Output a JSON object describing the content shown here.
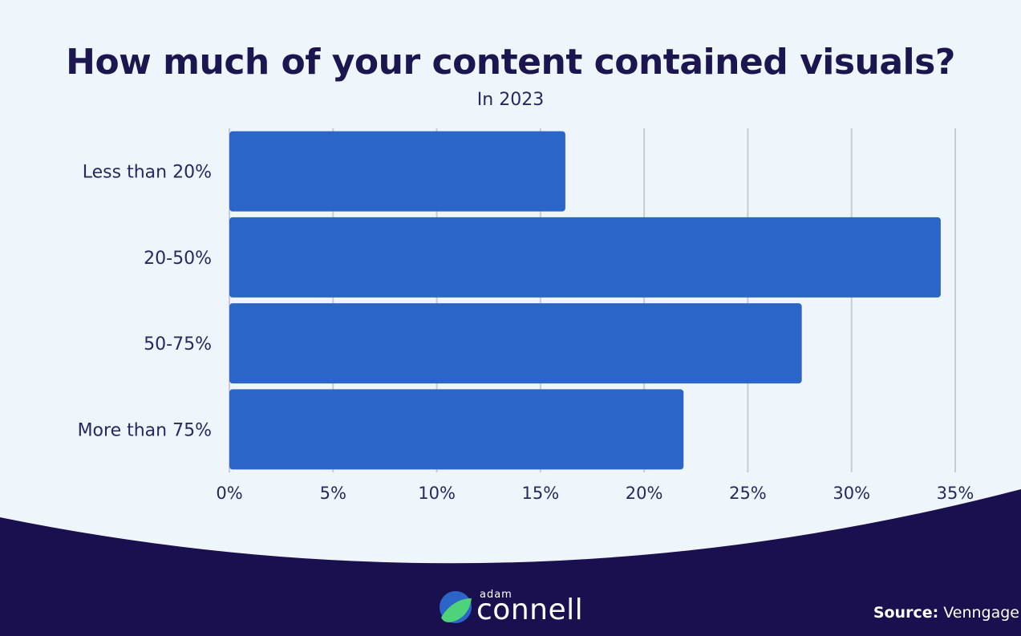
{
  "chart_data": {
    "type": "bar",
    "orientation": "horizontal",
    "title": "How much of your content contained visuals?",
    "subtitle": "In 2023",
    "categories": [
      "Less than 20%",
      "20-50%",
      "50-75%",
      "More than 75%"
    ],
    "values": [
      16.2,
      34.3,
      27.6,
      21.9
    ],
    "x_ticks": [
      "0%",
      "5%",
      "10%",
      "15%",
      "20%",
      "25%",
      "30%",
      "35%"
    ],
    "xlim": [
      0,
      35
    ],
    "grid": true,
    "bar_color": "#2a65c7"
  },
  "colors": {
    "background": "#eef6fb",
    "footer": "#1a1050",
    "title": "#1c1650",
    "text": "#2a2660",
    "grid": "#c9c9da",
    "logo_accent_blue": "#2a65c7",
    "logo_accent_green": "#4fd37a"
  },
  "footer": {
    "logo_top": "adam",
    "logo_main": "connell",
    "logo_icon": "adam-connell-logo-icon",
    "source_label": "Source:",
    "source_value": "Venngage"
  }
}
